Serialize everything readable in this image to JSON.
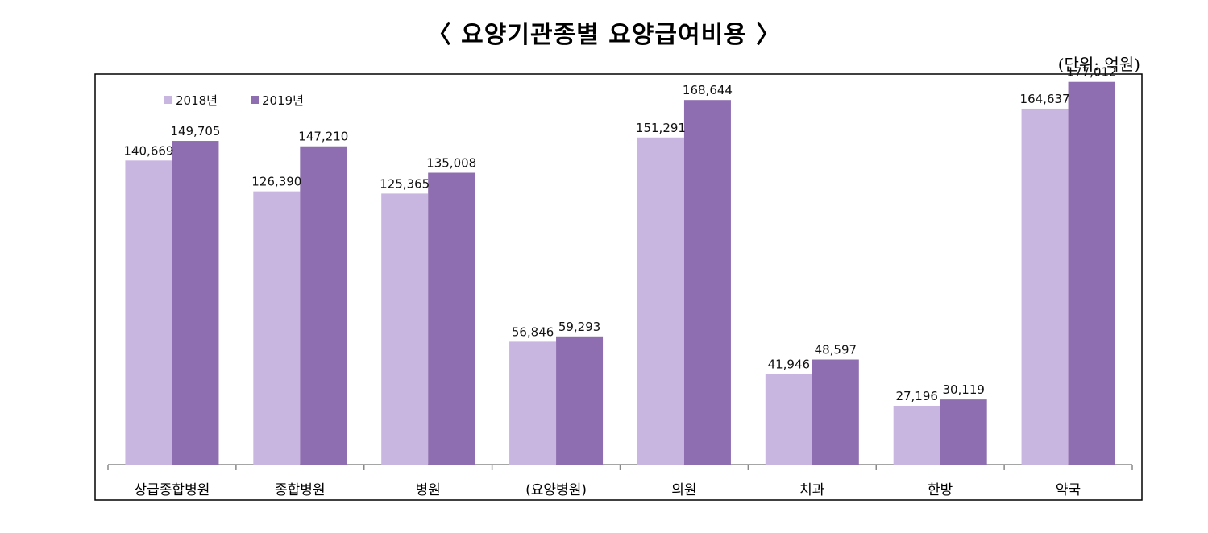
{
  "chart_data": {
    "type": "bar",
    "title": "〈 요양기관종별 요양급여비용 〉",
    "unit": "(단위: 억원)",
    "categories": [
      "상급종합병원",
      "종합병원",
      "병원",
      "(요양병원)",
      "의원",
      "치과",
      "한방",
      "약국"
    ],
    "series": [
      {
        "name": "2018년",
        "color": "#c9b6e0",
        "values": [
          140669,
          126390,
          125365,
          56846,
          151291,
          41946,
          27196,
          164637
        ],
        "labels": [
          "140,669",
          "126,390",
          "125,365",
          "56,846",
          "151,291",
          "41,946",
          "27,196",
          "164,637"
        ]
      },
      {
        "name": "2019년",
        "color": "#8e6eb0",
        "values": [
          149705,
          147210,
          135008,
          59293,
          168644,
          48597,
          30119,
          177012
        ],
        "labels": [
          "149,705",
          "147,210",
          "135,008",
          "59,293",
          "168,644",
          "48,597",
          "30,119",
          "177,012"
        ]
      }
    ],
    "ylim": [
      0,
      200000
    ],
    "legend_position": "top-left",
    "grid": false
  }
}
